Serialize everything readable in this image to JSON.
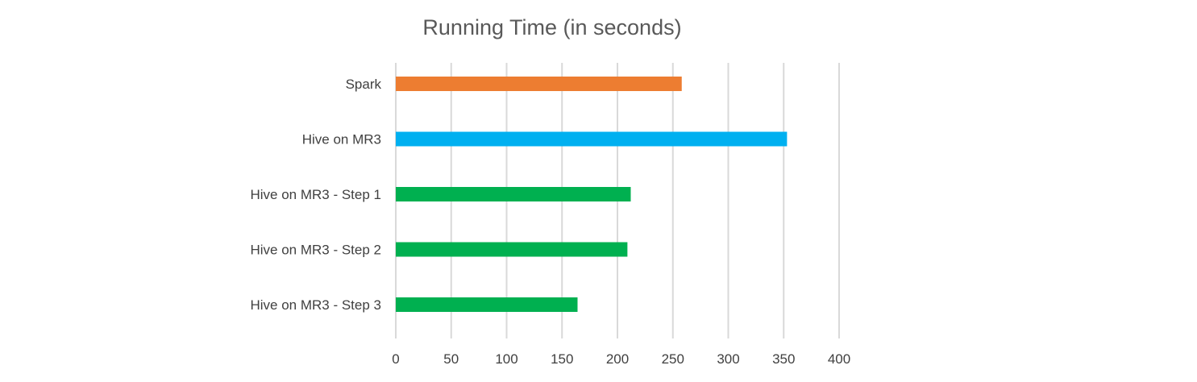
{
  "chart_data": {
    "type": "bar",
    "orientation": "horizontal",
    "title": "Running Time (in seconds)",
    "xlabel": "",
    "ylabel": "",
    "xlim": [
      0,
      400
    ],
    "x_ticks": [
      0,
      50,
      100,
      150,
      200,
      250,
      300,
      350,
      400
    ],
    "grid": true,
    "legend": "none",
    "categories": [
      "Spark",
      "Hive on MR3",
      "Hive on MR3 - Step 1",
      "Hive on MR3 - Step 2",
      "Hive on MR3 - Step 3"
    ],
    "values": [
      258,
      353,
      212,
      209,
      164
    ],
    "colors": [
      "#ed7d31",
      "#00b0f0",
      "#00b050",
      "#00b050",
      "#00b050"
    ]
  }
}
